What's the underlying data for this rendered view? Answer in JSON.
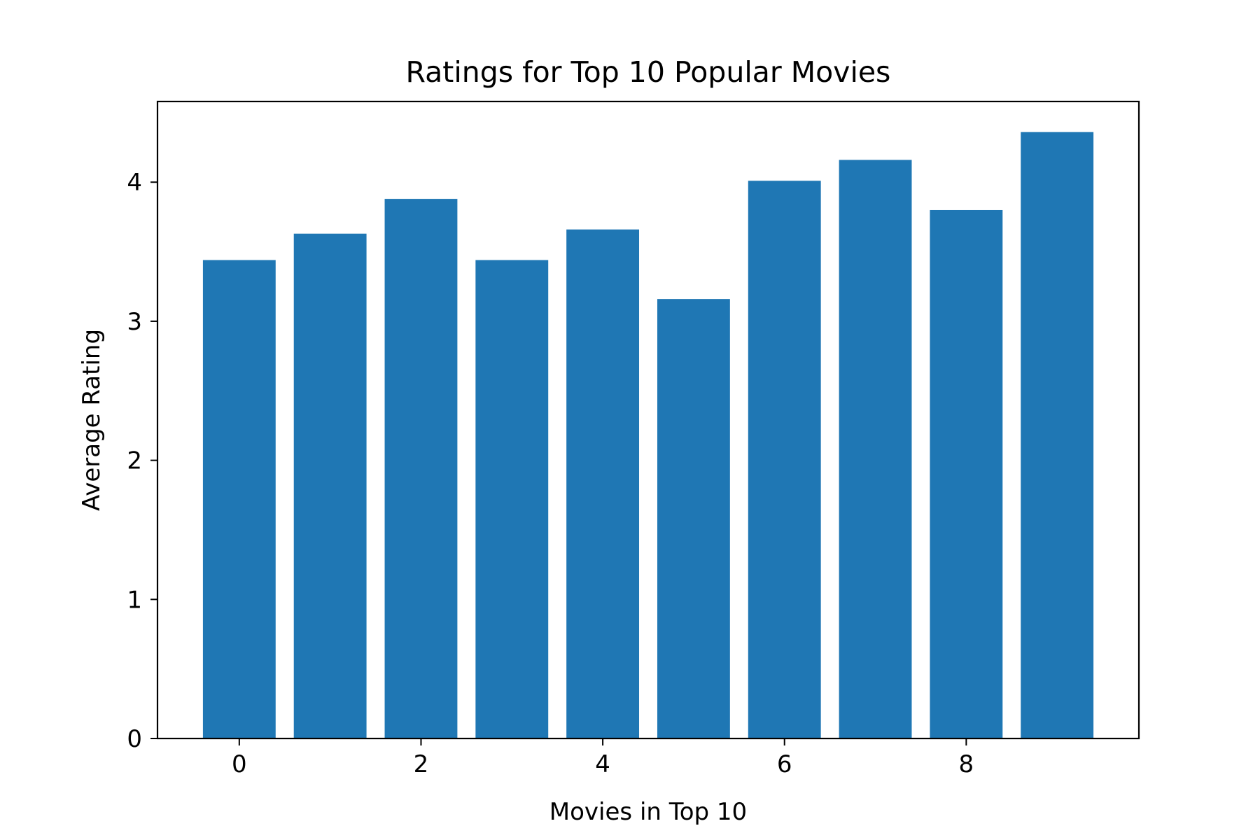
{
  "chart_data": {
    "type": "bar",
    "title": "Ratings for Top 10 Popular Movies",
    "xlabel": "Movies in Top 10",
    "ylabel": "Average Rating",
    "x": [
      0,
      1,
      2,
      3,
      4,
      5,
      6,
      7,
      8,
      9
    ],
    "values": [
      3.44,
      3.63,
      3.88,
      3.44,
      3.66,
      3.16,
      4.01,
      4.16,
      3.8,
      4.36
    ],
    "xlim": [
      -0.9,
      9.9
    ],
    "ylim": [
      0,
      4.58
    ],
    "xticks": [
      0,
      2,
      4,
      6,
      8
    ],
    "yticks": [
      0,
      1,
      2,
      3,
      4
    ],
    "bar_color": "#1f77b4",
    "grid": false,
    "legend": false
  }
}
